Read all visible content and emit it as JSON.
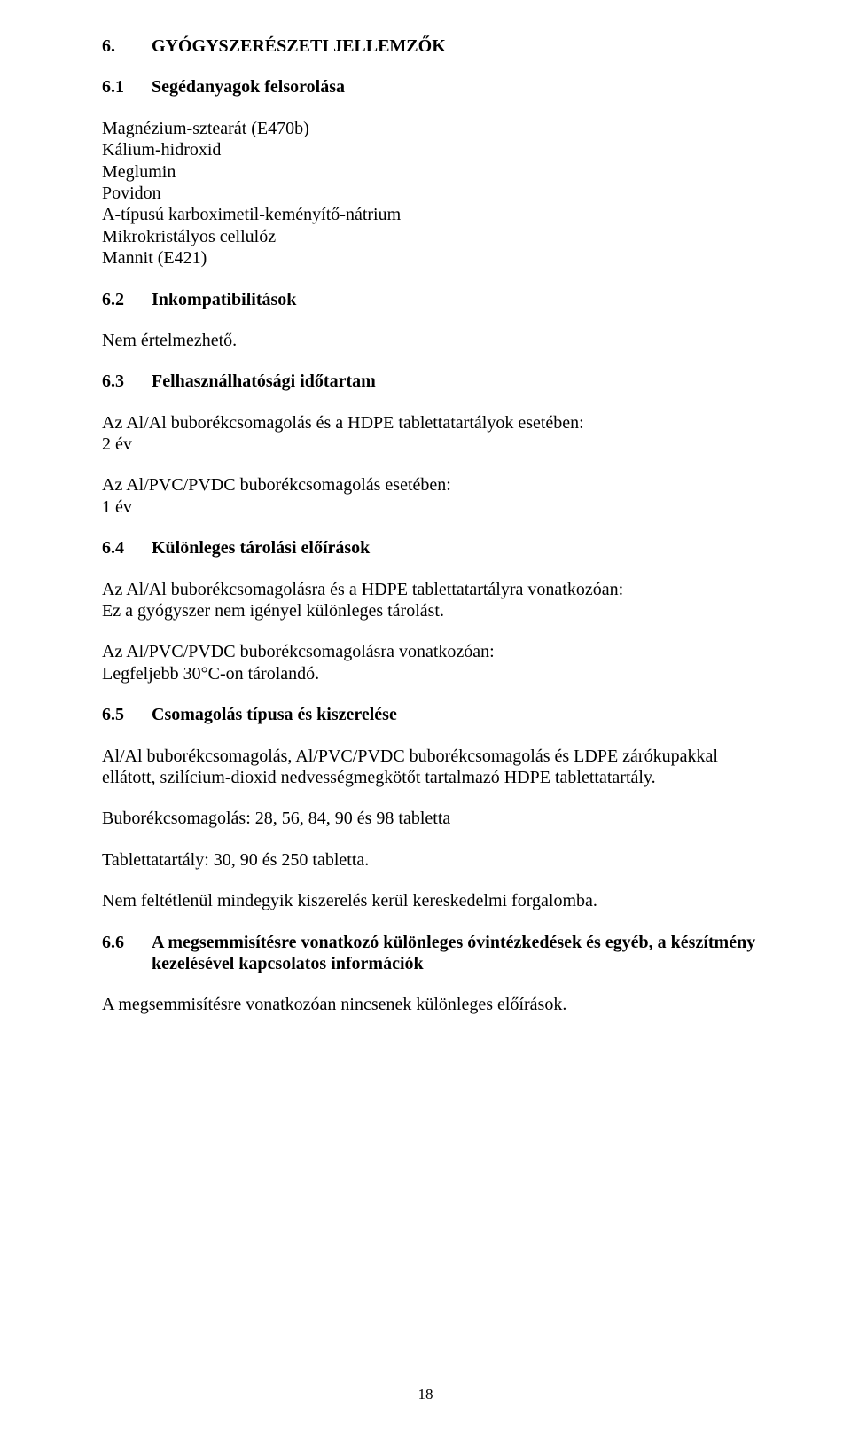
{
  "s6": {
    "num": "6.",
    "title": "GYÓGYSZERÉSZETI JELLEMZŐK"
  },
  "s61": {
    "num": "6.1",
    "title": "Segédanyagok felsorolása",
    "items": [
      "Magnézium-sztearát (E470b)",
      "Kálium-hidroxid",
      "Meglumin",
      "Povidon",
      "A-típusú karboximetil-keményítő-nátrium",
      "Mikrokristályos cellulóz",
      "Mannit (E421)"
    ]
  },
  "s62": {
    "num": "6.2",
    "title": "Inkompatibilitások",
    "body": "Nem értelmezhető."
  },
  "s63": {
    "num": "6.3",
    "title": "Felhasználhatósági időtartam",
    "p1a": "Az Al/Al buborékcsomagolás és a HDPE tablettatartályok esetében:",
    "p1b": "2 év",
    "p2a": "Az Al/PVC/PVDC buborékcsomagolás esetében:",
    "p2b": "1 év"
  },
  "s64": {
    "num": "6.4",
    "title": "Különleges tárolási előírások",
    "p1a": "Az Al/Al buborékcsomagolásra és a HDPE tablettatartályra vonatkozóan:",
    "p1b": "Ez a gyógyszer nem igényel különleges tárolást.",
    "p2a": "Az Al/PVC/PVDC buborékcsomagolásra vonatkozóan:",
    "p2b": "Legfeljebb 30°C-on tárolandó."
  },
  "s65": {
    "num": "6.5",
    "title": "Csomagolás típusa és kiszerelése",
    "p1": "Al/Al buborékcsomagolás, Al/PVC/PVDC buborékcsomagolás és LDPE zárókupakkal ellátott, szilícium-dioxid nedvességmegkötőt tartalmazó HDPE tablettatartály.",
    "p2": "Buborékcsomagolás: 28, 56, 84, 90 és 98 tabletta",
    "p3": "Tablettatartály: 30, 90 és 250 tabletta.",
    "p4": "Nem feltétlenül mindegyik kiszerelés kerül kereskedelmi forgalomba."
  },
  "s66": {
    "num": "6.6",
    "title_line1": "A megsemmisítésre vonatkozó különleges óvintézkedések és egyéb, a készítmény",
    "title_line2": "kezelésével kapcsolatos információk",
    "p1": "A megsemmisítésre vonatkozóan nincsenek különleges előírások."
  },
  "page_number": "18"
}
